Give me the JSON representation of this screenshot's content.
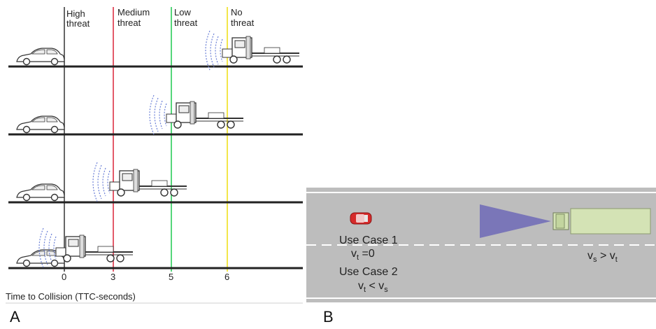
{
  "panel_a": {
    "label": "A",
    "zones": [
      {
        "line1": "High",
        "line2": "threat",
        "color": "#333333"
      },
      {
        "line1": "Medium",
        "line2": "threat",
        "color": "#e35a6a"
      },
      {
        "line1": "Low",
        "line2": "threat",
        "color": "#55d67a"
      },
      {
        "line1": "No",
        "line2": "threat",
        "color": "#f2e64a"
      }
    ],
    "ticks": [
      "0",
      "3",
      "5",
      "6"
    ],
    "axis_title": "Time to Collision (TTC-seconds)"
  },
  "panel_b": {
    "label": "B",
    "use_case_1": "Use Case 1",
    "vt_eq": {
      "main": "v",
      "sub": "t",
      "rest": " =0"
    },
    "use_case_2": "Use Case 2",
    "vt_lt": {
      "main": "v",
      "sub": "t",
      "rest": " < v",
      "sub2": "s"
    },
    "vs_gt": {
      "main": "v",
      "sub": "s",
      "rest": " > v",
      "sub2": "t"
    },
    "colors": {
      "road": "#bdbdbd",
      "cone": "#7a76b8",
      "truck": "#d4e3b5",
      "car": "#d62a2a"
    }
  }
}
